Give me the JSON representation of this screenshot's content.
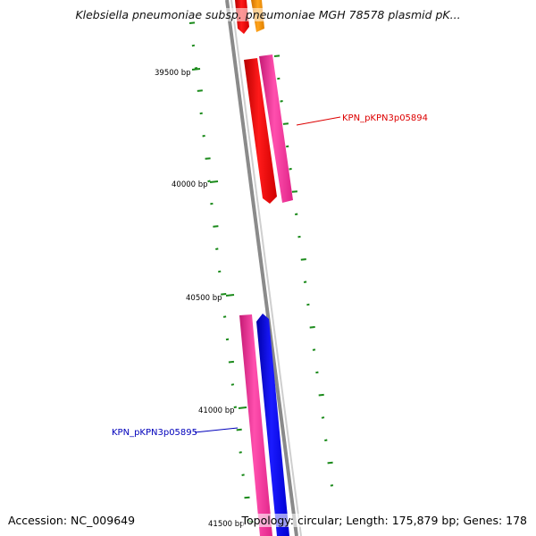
{
  "title": "Klebsiella pneumoniae subsp. pneumoniae MGH 78578 plasmid pK...",
  "footer": {
    "accession": "Accession: NC_009649",
    "info": "Topology: circular; Length: 175,879 bp; Genes: 178"
  },
  "ticks": [
    {
      "label": "39500 bp"
    },
    {
      "label": "40000 bp"
    },
    {
      "label": "40500 bp"
    },
    {
      "label": "41000 bp"
    },
    {
      "label": "41500 bp"
    }
  ],
  "gene_labels": [
    {
      "label": "KPN_pKPN3p05894",
      "color": "#dd0000"
    },
    {
      "label": "KPN_pKPN3p05895",
      "color": "#0000bb"
    }
  ],
  "colors": {
    "backbone": "#8a8a8a",
    "gc_marks": "#1a8a1a",
    "red": "#ff0000",
    "pink": "#ff3399",
    "blue": "#0000ff",
    "orange": "#ff9900"
  }
}
